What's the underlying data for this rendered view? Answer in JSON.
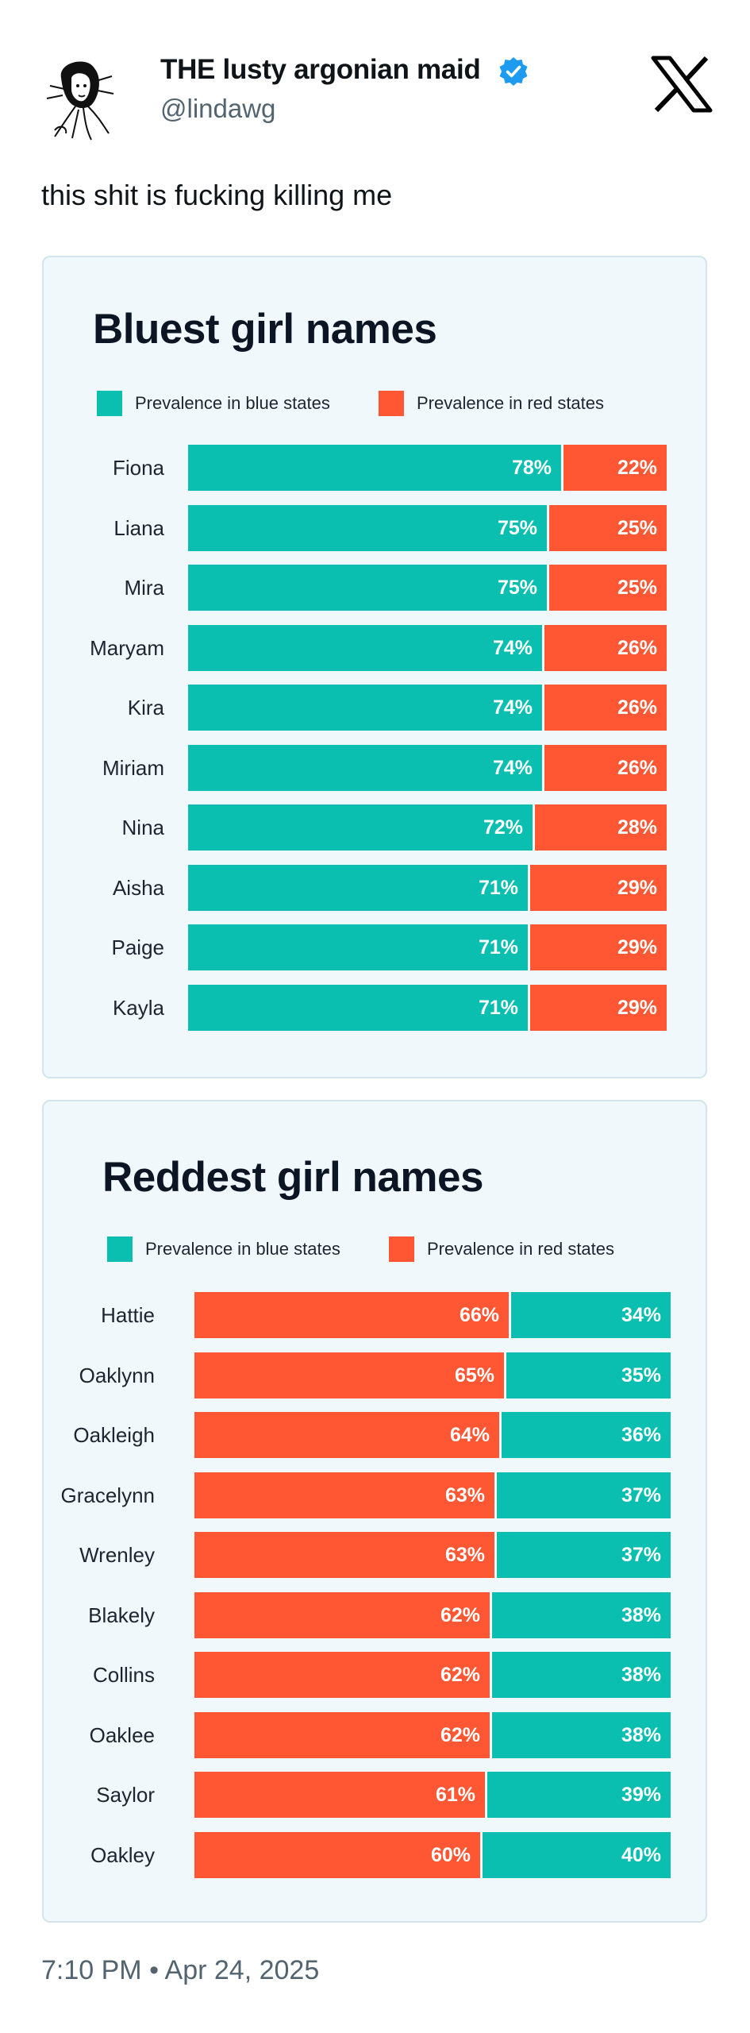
{
  "post": {
    "display_name": "THE lusty argonian maid",
    "handle": "@lindawg",
    "text": "this shit is fucking killing me",
    "timestamp": "7:10 PM • Apr 24, 2025",
    "verified_color": "#1d9bf0"
  },
  "icons": {
    "avatar": "avatar-drawing-icon",
    "verified": "verified-badge-icon",
    "logo": "x-logo-icon"
  },
  "colors": {
    "blue_states": "#0abfb0",
    "red_states": "#ff5733"
  },
  "chart_data": [
    {
      "type": "bar",
      "stacked": true,
      "orientation": "horizontal",
      "title": "Bluest girl names",
      "legend": [
        "Prevalence in blue states",
        "Prevalence in red states"
      ],
      "categories": [
        "Fiona",
        "Liana",
        "Mira",
        "Maryam",
        "Kira",
        "Miriam",
        "Nina",
        "Aisha",
        "Paige",
        "Kayla"
      ],
      "series": [
        {
          "name": "Prevalence in blue states",
          "values": [
            78,
            75,
            75,
            74,
            74,
            74,
            72,
            71,
            71,
            71
          ],
          "labels": [
            "78%",
            "75%",
            "75%",
            "74%",
            "74%",
            "74%",
            "72%",
            "71%",
            "71%",
            "71%"
          ]
        },
        {
          "name": "Prevalence in red states",
          "values": [
            22,
            25,
            25,
            26,
            26,
            26,
            28,
            29,
            29,
            29
          ],
          "labels": [
            "22%",
            "25%",
            "25%",
            "26%",
            "26%",
            "26%",
            "28%",
            "29%",
            "29%",
            "29%"
          ]
        }
      ],
      "xlim": [
        0,
        100
      ]
    },
    {
      "type": "bar",
      "stacked": true,
      "orientation": "horizontal",
      "title": "Reddest girl names",
      "legend": [
        "Prevalence in blue states",
        "Prevalence in red states"
      ],
      "categories": [
        "Hattie",
        "Oaklynn",
        "Oakleigh",
        "Gracelynn",
        "Wrenley",
        "Blakely",
        "Collins",
        "Oaklee",
        "Saylor",
        "Oakley"
      ],
      "series": [
        {
          "name": "Prevalence in red states",
          "values": [
            66,
            65,
            64,
            63,
            63,
            62,
            62,
            62,
            61,
            60
          ],
          "labels": [
            "66%",
            "65%",
            "64%",
            "63%",
            "63%",
            "62%",
            "62%",
            "62%",
            "61%",
            "60%"
          ]
        },
        {
          "name": "Prevalence in blue states",
          "values": [
            34,
            35,
            36,
            37,
            37,
            38,
            38,
            38,
            39,
            40
          ],
          "labels": [
            "34%",
            "35%",
            "36%",
            "37%",
            "37%",
            "38%",
            "38%",
            "38%",
            "39%",
            "40%"
          ]
        }
      ],
      "xlim": [
        0,
        100
      ]
    }
  ]
}
